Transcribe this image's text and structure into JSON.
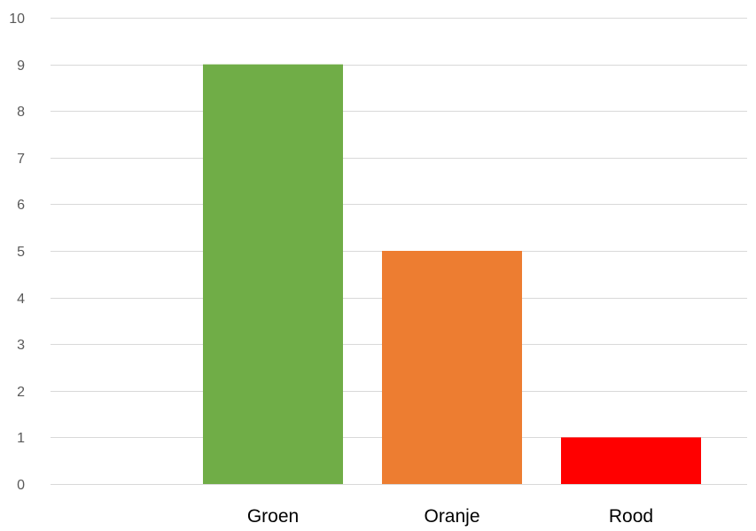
{
  "chart_data": {
    "type": "bar",
    "categories": [
      "Groen",
      "Oranje",
      "Rood"
    ],
    "values": [
      9,
      5,
      1
    ],
    "bar_colors": [
      "#70AD47",
      "#ED7D31",
      "#FF0000"
    ],
    "ylim": [
      0,
      10
    ],
    "yticks": [
      "0",
      "1",
      "2",
      "3",
      "4",
      "5",
      "6",
      "7",
      "8",
      "9",
      "10"
    ],
    "grid": true,
    "title": "",
    "xlabel": "",
    "ylabel": ""
  }
}
